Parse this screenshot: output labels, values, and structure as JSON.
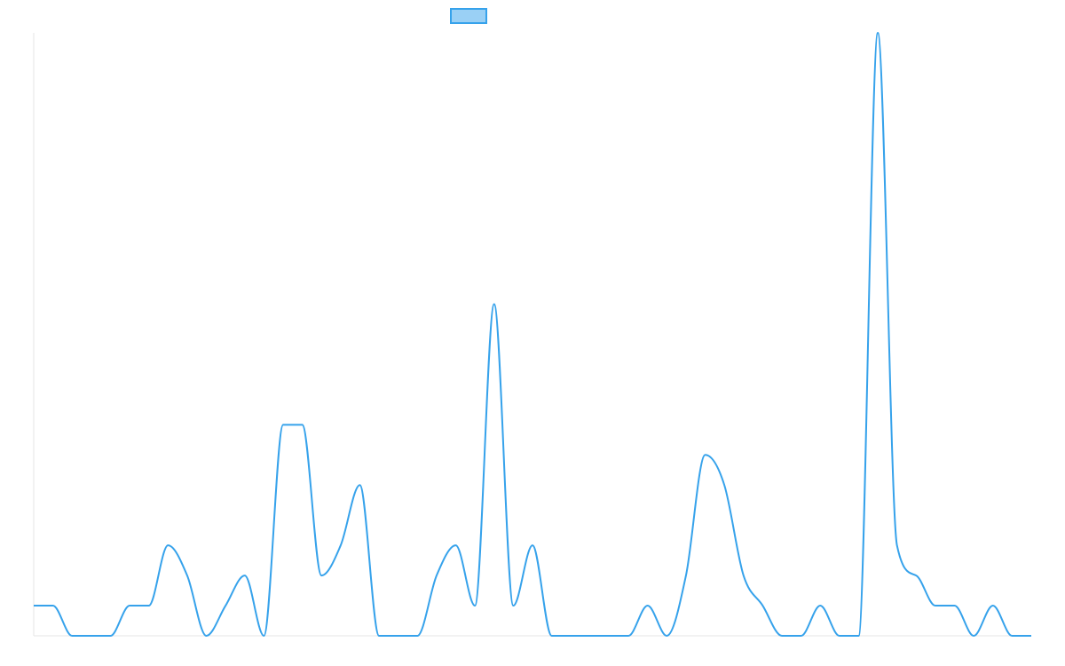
{
  "chart_data": {
    "type": "line",
    "title": "",
    "xlabel": "",
    "ylabel": "",
    "ylim": [
      0,
      20
    ],
    "grid": false,
    "legend_position": "top-center",
    "series": [
      {
        "name": "",
        "color": "#36a2eb",
        "fill": "#9ad0f5",
        "values": [
          1,
          1,
          0,
          0,
          0,
          1,
          1,
          3,
          2,
          0,
          1,
          2,
          0,
          7,
          7,
          2,
          3,
          5,
          0,
          0,
          0,
          2,
          3,
          1,
          11,
          1,
          3,
          0,
          0,
          0,
          0,
          0,
          1,
          0,
          2,
          6,
          5,
          2,
          1,
          0,
          0,
          1,
          0,
          0,
          20,
          3,
          2,
          1,
          1,
          0,
          1,
          0,
          0
        ]
      }
    ]
  }
}
